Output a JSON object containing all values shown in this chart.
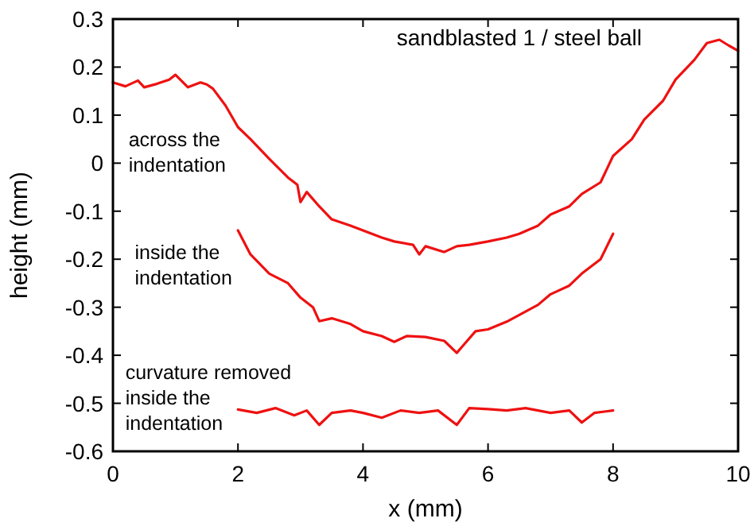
{
  "chart_data": {
    "type": "line",
    "xlabel": "x  (mm)",
    "ylabel": "height (mm)",
    "xlim": [
      0,
      10
    ],
    "ylim": [
      -0.6,
      0.3
    ],
    "xticks": [
      0,
      2,
      4,
      6,
      8,
      10
    ],
    "yticks": [
      -0.6,
      -0.5,
      -0.4,
      -0.3,
      -0.2,
      -0.1,
      0,
      0.1,
      0.2,
      0.3
    ],
    "annotations": [
      "sandblasted 1 / steel ball",
      "across the\nindentation",
      "inside the\nindentation",
      "curvature removed\ninside the\nindentation"
    ],
    "series": [
      {
        "color": "#ee1111",
        "x": [
          0,
          0.2,
          0.4,
          0.5,
          0.7,
          0.9,
          1.0,
          1.2,
          1.4,
          1.5,
          1.6,
          1.8,
          2,
          2.2,
          2.5,
          2.8,
          2.95,
          3.0,
          3.1,
          3.3,
          3.5,
          3.8,
          4,
          4.3,
          4.5,
          4.8,
          4.9,
          5,
          5.3,
          5.5,
          5.7,
          6,
          6.3,
          6.5,
          6.8,
          7,
          7.3,
          7.5,
          7.8,
          8,
          8.3,
          8.5,
          8.8,
          9,
          9.3,
          9.5,
          9.7,
          9.85,
          10
        ],
        "values": [
          0.168,
          0.16,
          0.172,
          0.158,
          0.165,
          0.174,
          0.184,
          0.158,
          0.168,
          0.164,
          0.155,
          0.12,
          0.075,
          0.05,
          0.009,
          -0.03,
          -0.045,
          -0.081,
          -0.06,
          -0.09,
          -0.117,
          -0.13,
          -0.14,
          -0.155,
          -0.163,
          -0.17,
          -0.19,
          -0.173,
          -0.185,
          -0.173,
          -0.17,
          -0.163,
          -0.155,
          -0.147,
          -0.13,
          -0.107,
          -0.09,
          -0.064,
          -0.04,
          0.015,
          0.05,
          0.091,
          0.13,
          0.174,
          0.215,
          0.25,
          0.257,
          0.245,
          0.234
        ]
      },
      {
        "color": "#ee1111",
        "x": [
          2,
          2.2,
          2.5,
          2.8,
          3,
          3.2,
          3.3,
          3.5,
          3.8,
          4,
          4.3,
          4.5,
          4.7,
          5,
          5.3,
          5.5,
          5.6,
          5.8,
          6,
          6.3,
          6.5,
          6.8,
          7,
          7.3,
          7.5,
          7.8,
          8
        ],
        "values": [
          -0.14,
          -0.19,
          -0.23,
          -0.25,
          -0.28,
          -0.3,
          -0.329,
          -0.323,
          -0.335,
          -0.35,
          -0.36,
          -0.372,
          -0.36,
          -0.362,
          -0.37,
          -0.395,
          -0.38,
          -0.35,
          -0.346,
          -0.33,
          -0.316,
          -0.295,
          -0.273,
          -0.255,
          -0.23,
          -0.2,
          -0.147
        ]
      },
      {
        "color": "#ee1111",
        "x": [
          2,
          2.3,
          2.6,
          2.9,
          3.1,
          3.3,
          3.5,
          3.8,
          4,
          4.3,
          4.6,
          4.9,
          5.2,
          5.5,
          5.7,
          6,
          6.3,
          6.6,
          7,
          7.3,
          7.5,
          7.7,
          8
        ],
        "values": [
          -0.513,
          -0.52,
          -0.51,
          -0.525,
          -0.515,
          -0.545,
          -0.52,
          -0.515,
          -0.52,
          -0.53,
          -0.515,
          -0.52,
          -0.515,
          -0.545,
          -0.51,
          -0.512,
          -0.515,
          -0.51,
          -0.52,
          -0.515,
          -0.54,
          -0.52,
          -0.515
        ]
      }
    ]
  }
}
